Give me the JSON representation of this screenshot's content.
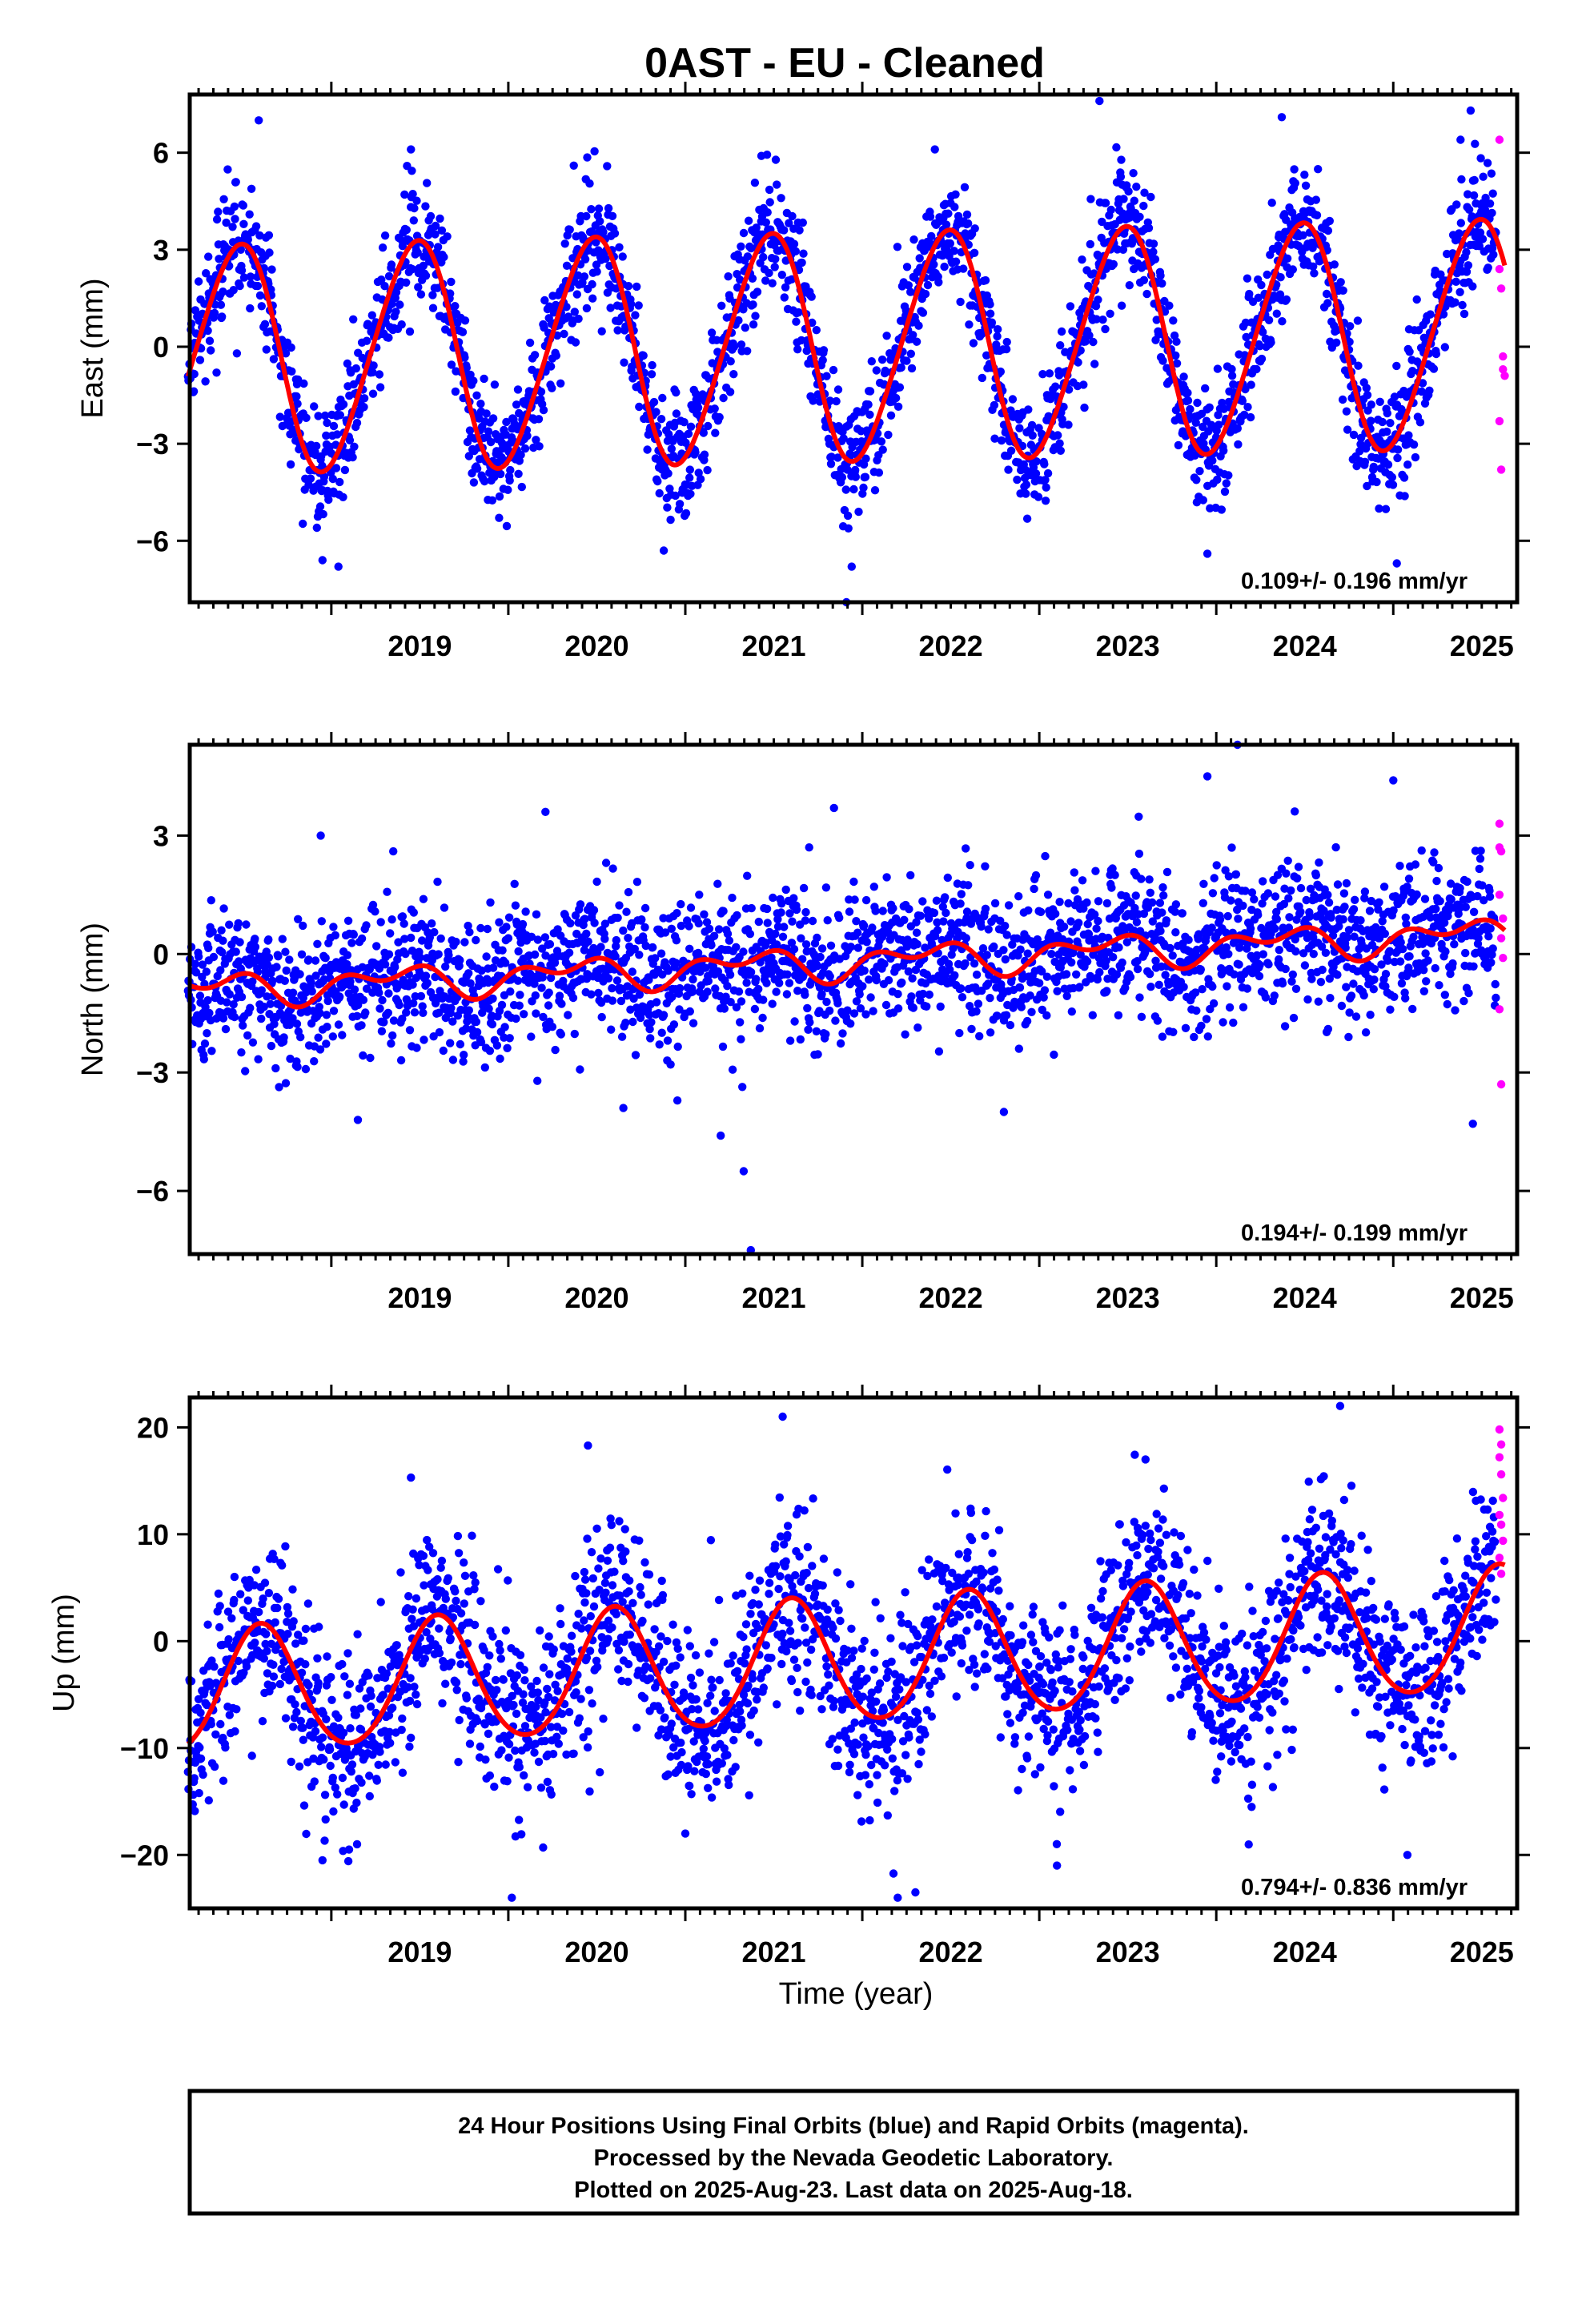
{
  "title": "0AST  - EU - Cleaned",
  "xlabel": "Time (year)",
  "footer": {
    "line1": "24 Hour Positions Using Final Orbits (blue) and Rapid Orbits (magenta).",
    "line2": "Processed by the Nevada Geodetic Laboratory.",
    "line3": "Plotted on 2025-Aug-23. Last data on 2025-Aug-18."
  },
  "colors": {
    "final_orbits": "#0000ff",
    "rapid_orbits": "#ff00ff",
    "model_fit": "#ff0000",
    "frame": "#000000"
  },
  "chart_data": [
    {
      "type": "scatter",
      "component": "east",
      "ylabel": "East (mm)",
      "xlim": [
        2018.2,
        2025.7
      ],
      "ylim": [
        -7.9,
        7.8
      ],
      "xticks": [
        2019,
        2020,
        2021,
        2022,
        2023,
        2024,
        2025
      ],
      "yticks": [
        -6,
        -3,
        0,
        3,
        6
      ],
      "ytick_labels": [
        "−6",
        "−3",
        "0",
        "3",
        "6"
      ],
      "rate_label": "0.109+/- 0.196 mm/yr",
      "rate": 0.109,
      "rate_sigma": 0.196,
      "data_range": [
        2018.19,
        2025.63
      ],
      "rapid_start": 2025.58,
      "model": {
        "offset": 0.0,
        "rate": 0.109,
        "terms": [
          {
            "amp": 3.5,
            "phase": -1.37
          },
          {
            "amp": 0.3,
            "phase": 0.4
          }
        ]
      },
      "noise_sd": 0.95,
      "outliers": [
        [
          2018.59,
          7.0
        ],
        [
          2018.95,
          -6.6
        ],
        [
          2019.04,
          -6.8
        ],
        [
          2019.45,
          6.1
        ],
        [
          2020.37,
          5.6
        ],
        [
          2021.43,
          5.9
        ],
        [
          2021.91,
          -7.9
        ],
        [
          2021.94,
          -6.8
        ],
        [
          2022.41,
          6.1
        ],
        [
          2023.34,
          7.6
        ],
        [
          2023.95,
          -6.4
        ],
        [
          2024.37,
          7.1
        ],
        [
          2025.02,
          -6.7
        ],
        [
          2025.38,
          6.4
        ]
      ],
      "rapid_points": [
        [
          2025.6,
          6.4
        ],
        [
          2025.6,
          2.4
        ],
        [
          2025.61,
          1.8
        ],
        [
          2025.62,
          -0.3
        ],
        [
          2025.62,
          -0.7
        ],
        [
          2025.63,
          -0.9
        ],
        [
          2025.6,
          -2.3
        ],
        [
          2025.61,
          -3.8
        ]
      ]
    },
    {
      "type": "scatter",
      "component": "north",
      "ylabel": "North (mm)",
      "xlim": [
        2018.2,
        2025.7
      ],
      "ylim": [
        -7.6,
        5.3
      ],
      "xticks": [
        2019,
        2020,
        2021,
        2022,
        2023,
        2024,
        2025
      ],
      "yticks": [
        -6,
        -3,
        0,
        3
      ],
      "ytick_labels": [
        "−6",
        "−3",
        "0",
        "3"
      ],
      "rate_label": "0.194+/- 0.199 mm/yr",
      "rate": 0.194,
      "rate_sigma": 0.199,
      "data_range": [
        2018.19,
        2025.63
      ],
      "rapid_start": 2025.58,
      "model": {
        "offset": -0.2,
        "rate": 0.194,
        "terms": [
          {
            "amp": 0.3,
            "phase": -0.6
          },
          {
            "amp": 0.25,
            "phase": 0.9
          }
        ]
      },
      "noise_sd": 0.9,
      "outliers": [
        [
          2018.94,
          3.0
        ],
        [
          2019.15,
          -4.2
        ],
        [
          2019.35,
          2.6
        ],
        [
          2020.21,
          3.6
        ],
        [
          2020.65,
          -3.9
        ],
        [
          2021.2,
          -4.6
        ],
        [
          2021.33,
          -5.5
        ],
        [
          2021.37,
          -7.5
        ],
        [
          2021.7,
          2.7
        ],
        [
          2021.84,
          3.7
        ],
        [
          2022.8,
          -4.0
        ],
        [
          2023.95,
          4.5
        ],
        [
          2024.12,
          5.3
        ],
        [
          2025.0,
          4.4
        ],
        [
          2025.45,
          -4.3
        ]
      ],
      "rapid_points": [
        [
          2025.6,
          3.3
        ],
        [
          2025.6,
          2.7
        ],
        [
          2025.61,
          2.6
        ],
        [
          2025.6,
          1.5
        ],
        [
          2025.62,
          0.9
        ],
        [
          2025.61,
          0.4
        ],
        [
          2025.62,
          -0.1
        ],
        [
          2025.6,
          -1.4
        ],
        [
          2025.61,
          -3.3
        ]
      ]
    },
    {
      "type": "scatter",
      "component": "up",
      "ylabel": "Up (mm)",
      "xlim": [
        2018.2,
        2025.7
      ],
      "ylim": [
        -25,
        22.8
      ],
      "xticks": [
        2019,
        2020,
        2021,
        2022,
        2023,
        2024,
        2025
      ],
      "yticks": [
        -20,
        -10,
        0,
        10,
        20
      ],
      "ytick_labels": [
        "−20",
        "−10",
        "0",
        "10",
        "20"
      ],
      "rate_label": "0.794+/- 0.836 mm/yr",
      "rate": 0.794,
      "rate_sigma": 0.836,
      "data_range": [
        2018.19,
        2025.63
      ],
      "rapid_start": 2025.58,
      "model": {
        "offset": -2.0,
        "rate": 0.794,
        "terms": [
          {
            "amp": 5.8,
            "phase": -2.2
          },
          {
            "amp": 0.5,
            "phase": 0.3
          }
        ]
      },
      "noise_sd": 4.2,
      "outliers": [
        [
          2018.95,
          -20.5
        ],
        [
          2019.1,
          -19.5
        ],
        [
          2019.45,
          15.3
        ],
        [
          2020.02,
          -24.0
        ],
        [
          2020.45,
          18.3
        ],
        [
          2021.0,
          -18.0
        ],
        [
          2021.55,
          21.0
        ],
        [
          2022.2,
          -24.0
        ],
        [
          2022.3,
          -23.5
        ],
        [
          2023.1,
          -21.0
        ],
        [
          2023.6,
          17.0
        ],
        [
          2024.7,
          22.0
        ],
        [
          2025.08,
          -20.0
        ]
      ],
      "rapid_points": [
        [
          2025.6,
          19.8
        ],
        [
          2025.61,
          18.4
        ],
        [
          2025.6,
          17.2
        ],
        [
          2025.61,
          15.6
        ],
        [
          2025.62,
          13.4
        ],
        [
          2025.6,
          11.8
        ],
        [
          2025.61,
          10.9
        ],
        [
          2025.62,
          9.4
        ],
        [
          2025.6,
          7.8
        ],
        [
          2025.61,
          6.3
        ]
      ]
    }
  ]
}
